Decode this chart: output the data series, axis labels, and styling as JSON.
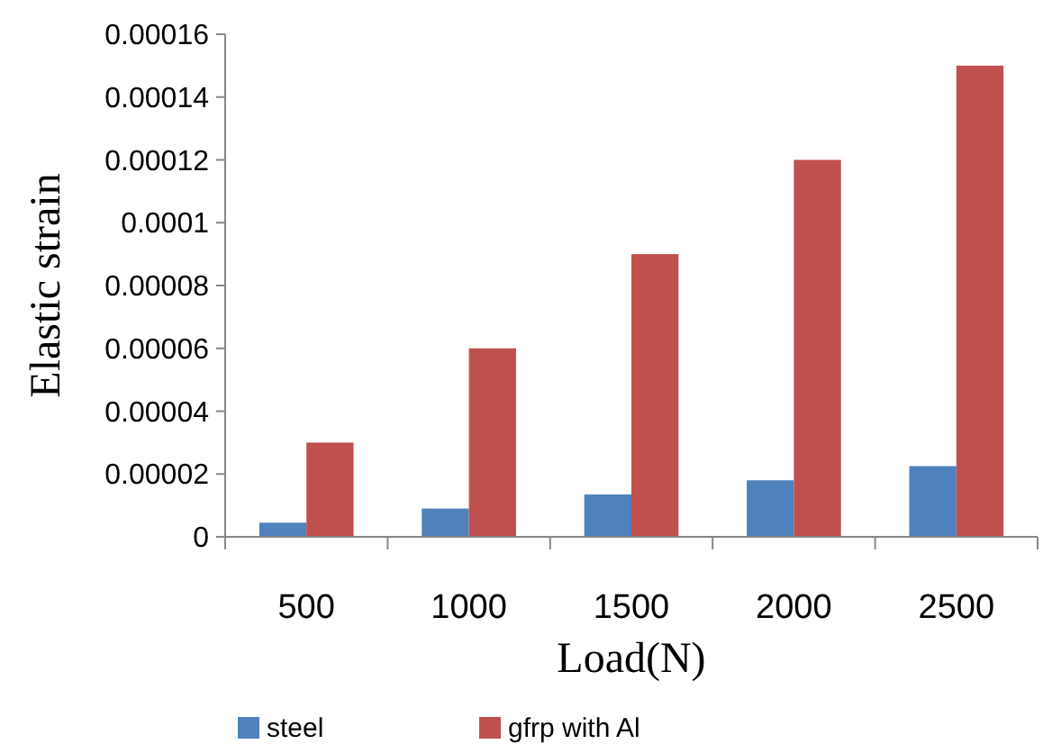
{
  "chart_data": {
    "type": "bar",
    "xlabel": "Load(N)",
    "ylabel": "Elastic strain",
    "categories": [
      "500",
      "1000",
      "1500",
      "2000",
      "2500"
    ],
    "series": [
      {
        "name": "steel",
        "color": "#4f81bd",
        "values": [
          4.5e-06,
          9e-06,
          1.35e-05,
          1.8e-05,
          2.25e-05
        ]
      },
      {
        "name": "gfrp with Al",
        "color": "#c0504d",
        "values": [
          3e-05,
          6e-05,
          9e-05,
          0.00012,
          0.00015
        ]
      }
    ],
    "ylim": [
      0,
      0.00016
    ],
    "yticks": [
      0,
      {
        "value": 2e-05,
        "label": "0.00002"
      },
      {
        "value": 4e-05,
        "label": "0.00004"
      },
      {
        "value": 6e-05,
        "label": "0.00006"
      },
      {
        "value": 8e-05,
        "label": "0.00008"
      },
      {
        "value": 0.0001,
        "label": "0.0001"
      },
      {
        "value": 0.00012,
        "label": "0.00012"
      },
      {
        "value": 0.00014,
        "label": "0.00014"
      },
      {
        "value": 0.00016,
        "label": "0.00016"
      }
    ],
    "grid": false,
    "legend": "bottom"
  }
}
